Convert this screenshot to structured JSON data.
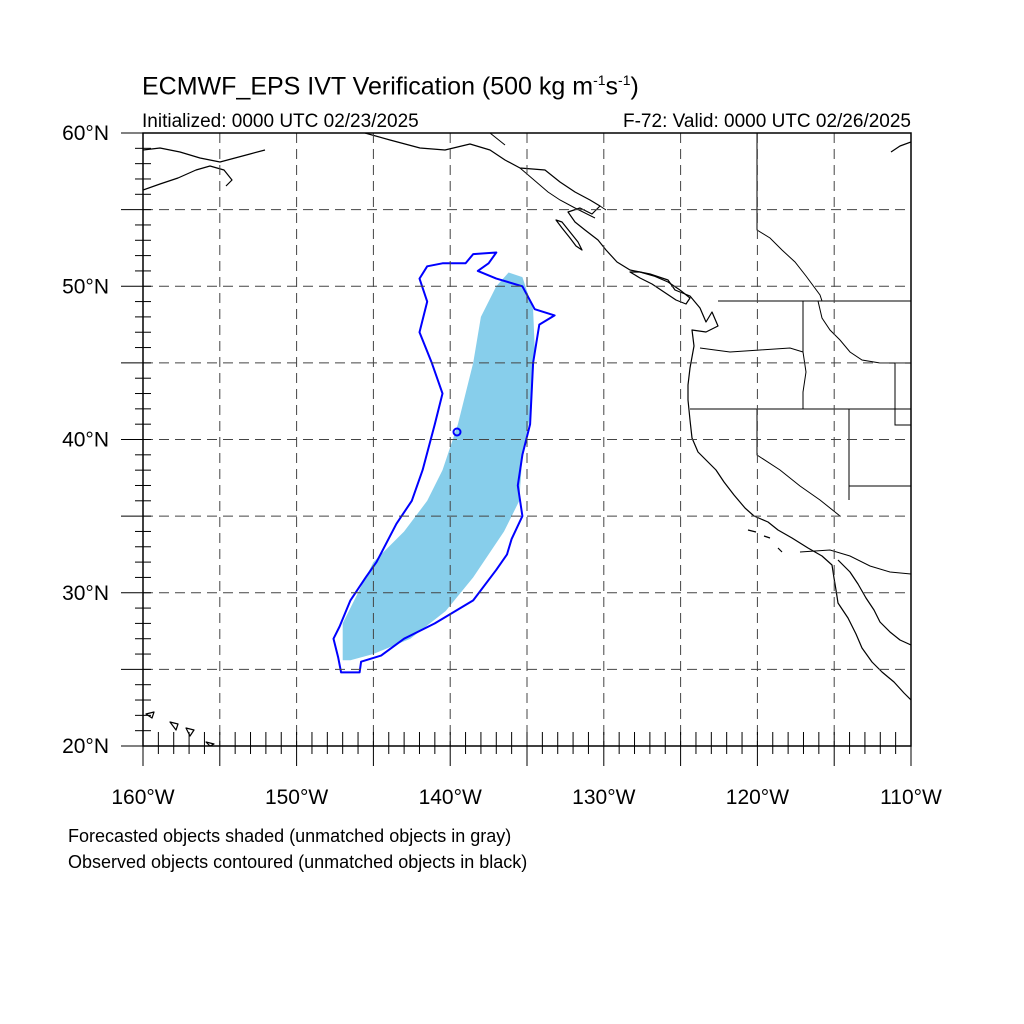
{
  "title": {
    "main": "ECMWF_EPS IVT Verification (500 kg m",
    "exp1": "-1",
    "mid": "s",
    "exp2": "-1",
    "end": ")"
  },
  "subtitle": {
    "initialized": "Initialized: 0000 UTC 02/23/2025",
    "valid": "F-72: Valid: 0000 UTC 02/26/2025"
  },
  "axes": {
    "lon_min": -160,
    "lon_max": -110,
    "lat_min": 20,
    "lat_max": 60,
    "lat_labels": [
      "60°N",
      "50°N",
      "40°N",
      "30°N",
      "20°N"
    ],
    "lon_labels": [
      "160°W",
      "150°W",
      "140°W",
      "130°W",
      "120°W",
      "110°W"
    ],
    "grid": "dashed, every 5 degrees"
  },
  "captions": {
    "line1": "Forecasted objects shaded (unmatched objects in gray)",
    "line2": "Observed objects contoured (unmatched objects in black)"
  },
  "colors": {
    "forecast_fill": "#87ceeb",
    "observed_contour": "#0000ff",
    "coast": "#000000"
  },
  "objects": {
    "forecast": {
      "matched": true,
      "outline_lonlat": [
        [
          -147,
          25.6
        ],
        [
          -147,
          28
        ],
        [
          -146,
          30
        ],
        [
          -145,
          32
        ],
        [
          -143,
          34
        ],
        [
          -141.5,
          36
        ],
        [
          -140.5,
          38
        ],
        [
          -139.5,
          41
        ],
        [
          -138.5,
          45
        ],
        [
          -138,
          48
        ],
        [
          -137,
          50
        ],
        [
          -136.2,
          50.9
        ],
        [
          -135.3,
          50.6
        ],
        [
          -134.6,
          48.5
        ],
        [
          -134.5,
          46
        ],
        [
          -134.7,
          42
        ],
        [
          -135.3,
          39
        ],
        [
          -135.5,
          36
        ],
        [
          -136.5,
          34
        ],
        [
          -138.5,
          31
        ],
        [
          -140.3,
          28.8
        ],
        [
          -142.6,
          27
        ],
        [
          -145,
          26
        ],
        [
          -146.5,
          25.6
        ]
      ]
    },
    "observed": {
      "matched": true,
      "outline_lonlat": [
        [
          -147.1,
          24.8
        ],
        [
          -145.9,
          24.8
        ],
        [
          -145.8,
          25.5
        ],
        [
          -144.5,
          25.9
        ],
        [
          -143,
          27
        ],
        [
          -141,
          28
        ],
        [
          -138.5,
          29.5
        ],
        [
          -137,
          31.5
        ],
        [
          -136.3,
          32.5
        ],
        [
          -136,
          33.5
        ],
        [
          -135.3,
          35
        ],
        [
          -135.6,
          37
        ],
        [
          -135.3,
          39
        ],
        [
          -134.8,
          41
        ],
        [
          -134.6,
          45
        ],
        [
          -134.2,
          47.5
        ],
        [
          -133.2,
          48.1
        ],
        [
          -134.5,
          48.5
        ],
        [
          -135.3,
          50
        ],
        [
          -137,
          50.5
        ],
        [
          -138.2,
          51
        ],
        [
          -137.5,
          51.5
        ],
        [
          -137,
          52.2
        ],
        [
          -138.5,
          52.1
        ],
        [
          -139,
          51.5
        ],
        [
          -140.5,
          51.5
        ],
        [
          -141.5,
          51.3
        ],
        [
          -142,
          50.5
        ],
        [
          -141.5,
          49
        ],
        [
          -142,
          47
        ],
        [
          -141.2,
          45
        ],
        [
          -140.5,
          43
        ],
        [
          -141,
          41
        ],
        [
          -141.8,
          38
        ],
        [
          -142.5,
          36
        ],
        [
          -143.5,
          34.5
        ],
        [
          -144.8,
          32
        ],
        [
          -145.5,
          31
        ],
        [
          -146.5,
          29.5
        ],
        [
          -147.2,
          27.8
        ],
        [
          -147.6,
          27
        ],
        [
          -147.3,
          25.8
        ]
      ]
    }
  }
}
